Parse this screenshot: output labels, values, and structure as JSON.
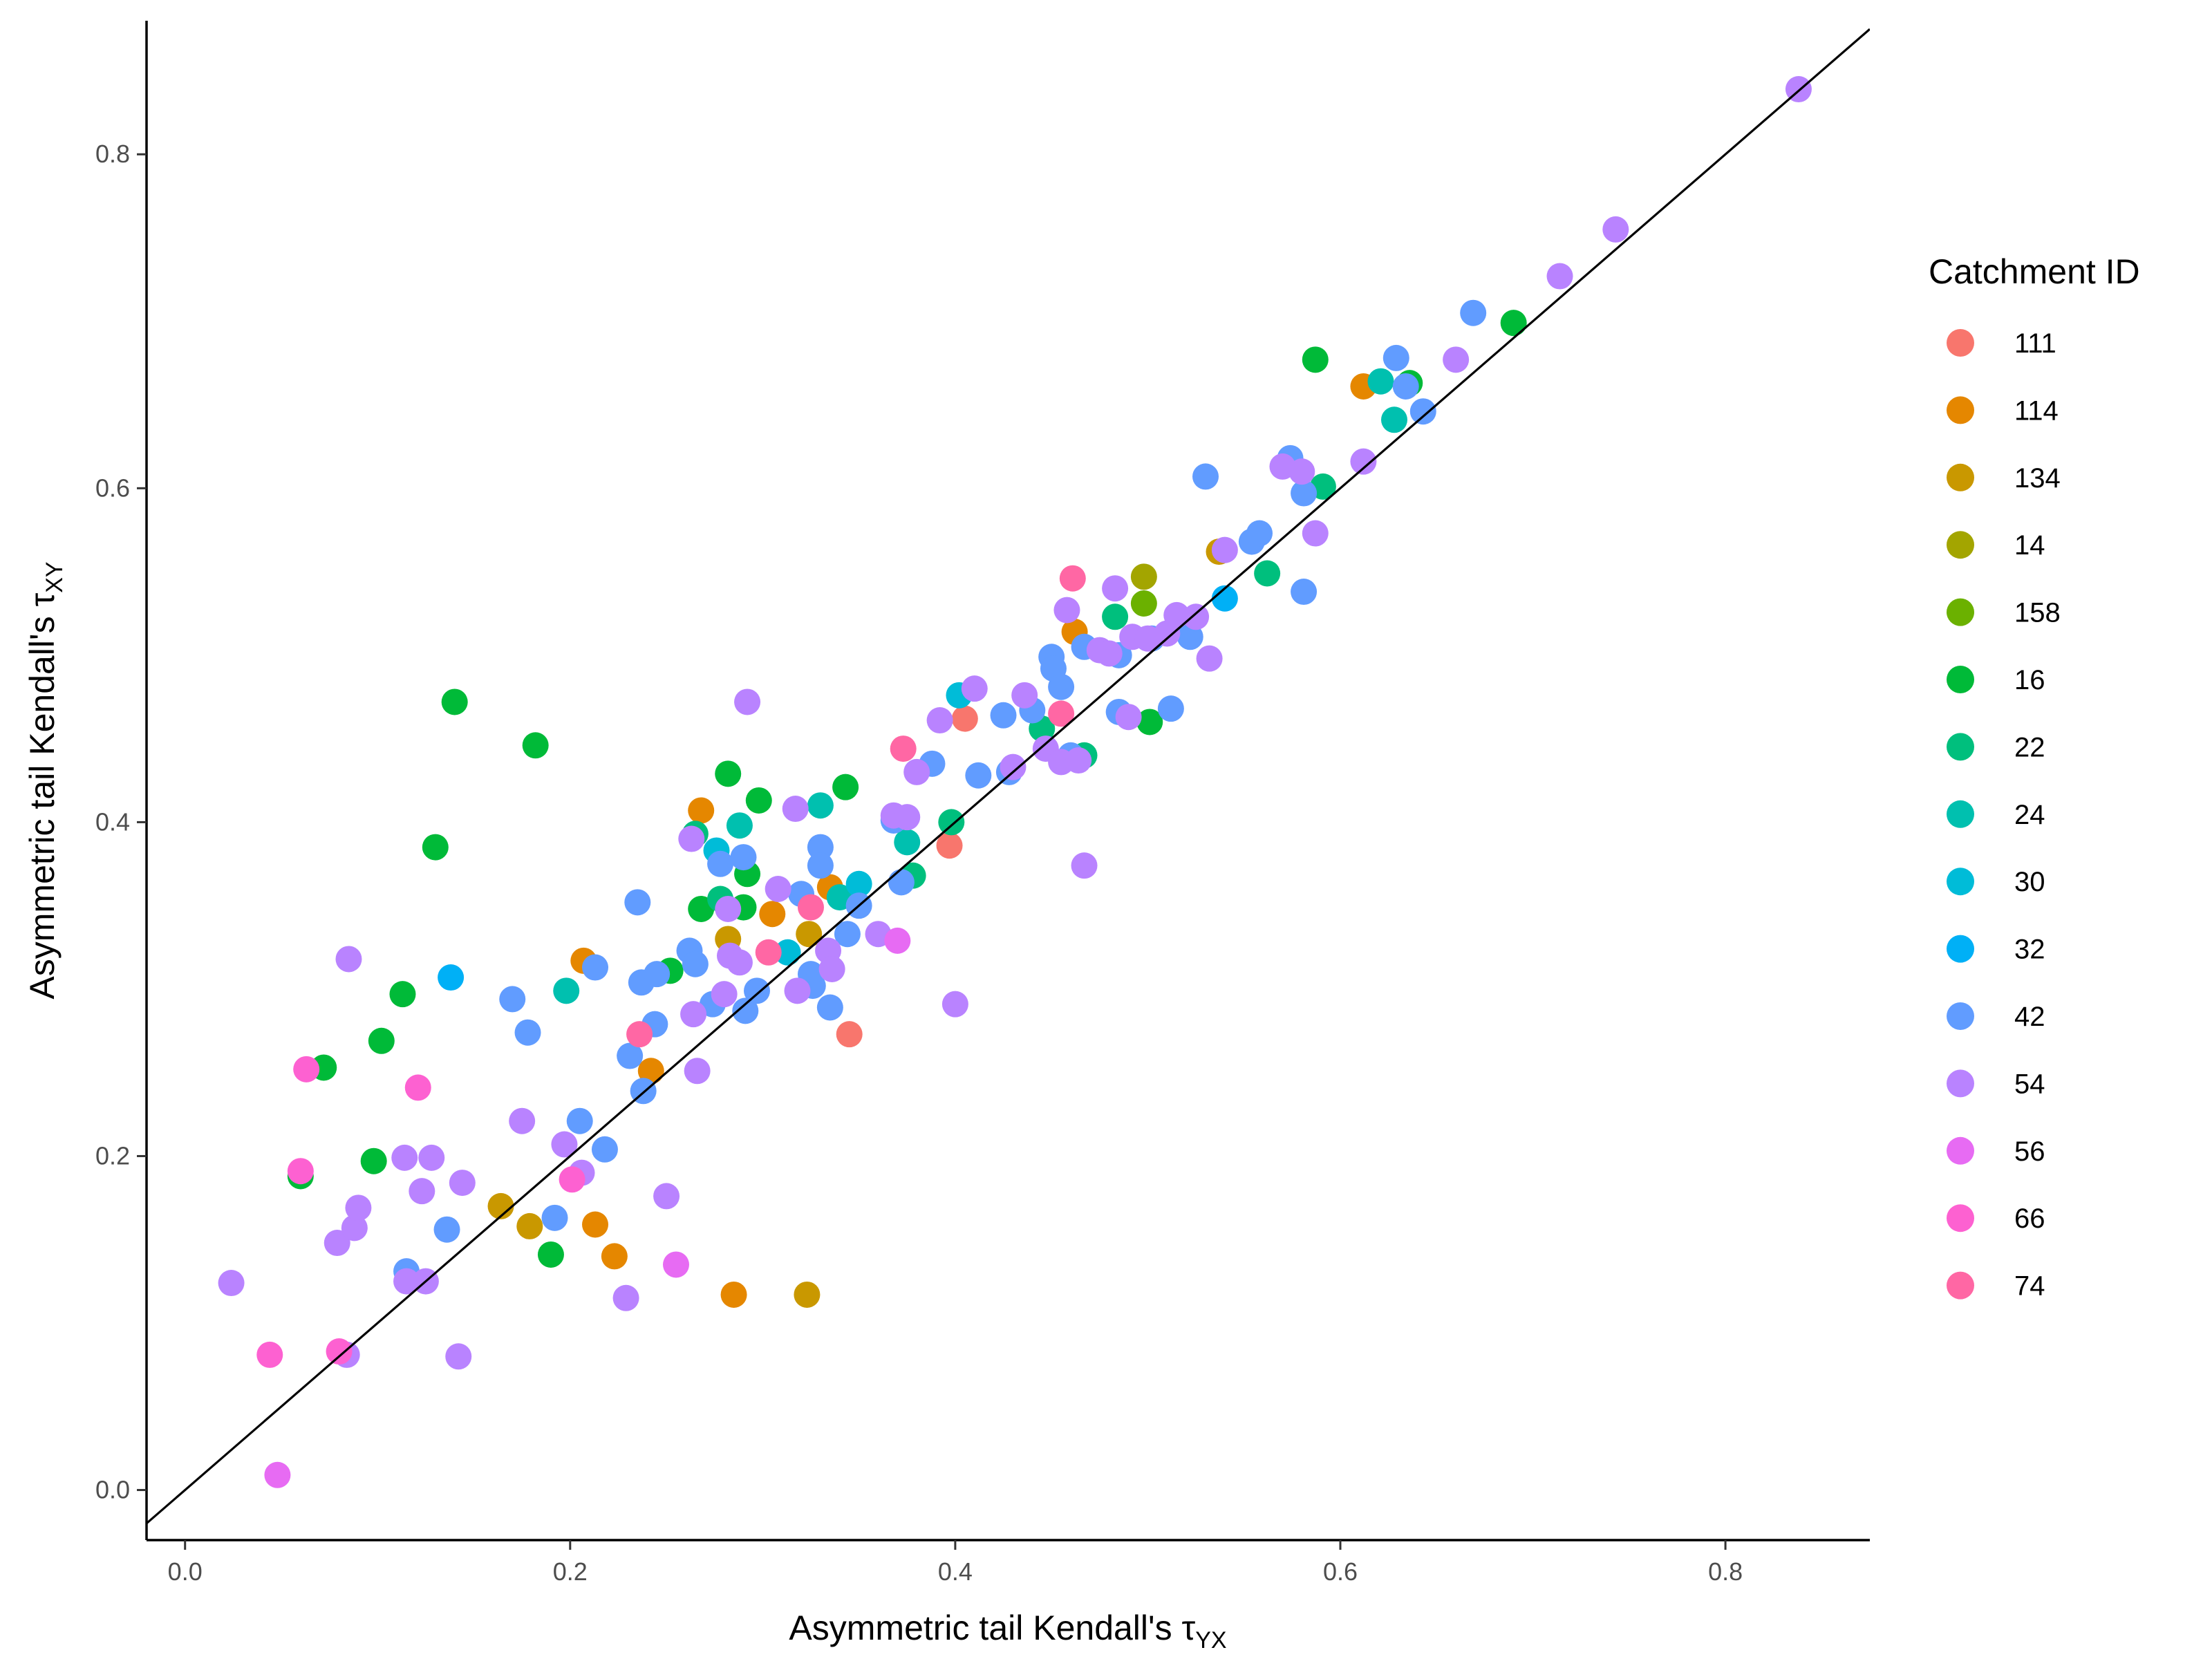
{
  "chart_data": {
    "type": "scatter",
    "xlabel": "Asymmetric tail Kendall's τ",
    "xlabel_sub": "YX",
    "ylabel": "Asymmetric tail Kendall's τ",
    "ylabel_sub": "XY",
    "xlim": [
      -0.02,
      0.875
    ],
    "ylim": [
      -0.03,
      0.88
    ],
    "x_ticks": [
      0.0,
      0.2,
      0.4,
      0.6,
      0.8
    ],
    "y_ticks": [
      0.0,
      0.2,
      0.4,
      0.6,
      0.8
    ],
    "x_tick_labels": [
      "0.0",
      "0.2",
      "0.4",
      "0.6",
      "0.8"
    ],
    "y_tick_labels": [
      "0.0",
      "0.2",
      "0.4",
      "0.6",
      "0.8"
    ],
    "reference_line": "y = x",
    "grid": false,
    "legend_title": "Catchment ID",
    "legend_position": "right",
    "series": [
      {
        "name": "111",
        "color": "#F8766D",
        "points": [
          [
            0.345,
            0.273
          ],
          [
            0.397,
            0.386
          ],
          [
            0.405,
            0.462
          ]
        ]
      },
      {
        "name": "114",
        "color": "#E58700",
        "points": [
          [
            0.207,
            0.317
          ],
          [
            0.213,
            0.159
          ],
          [
            0.223,
            0.14
          ],
          [
            0.242,
            0.251
          ],
          [
            0.268,
            0.407
          ],
          [
            0.285,
            0.117
          ],
          [
            0.305,
            0.345
          ],
          [
            0.335,
            0.361
          ],
          [
            0.462,
            0.514
          ],
          [
            0.612,
            0.661
          ]
        ]
      },
      {
        "name": "134",
        "color": "#C99800",
        "points": [
          [
            0.164,
            0.17
          ],
          [
            0.179,
            0.158
          ],
          [
            0.282,
            0.33
          ],
          [
            0.323,
            0.117
          ],
          [
            0.324,
            0.333
          ],
          [
            0.537,
            0.562
          ]
        ]
      },
      {
        "name": "14",
        "color": "#A3A500",
        "points": [
          [
            0.498,
            0.547
          ]
        ]
      },
      {
        "name": "158",
        "color": "#6BB100",
        "points": [
          [
            0.498,
            0.531
          ]
        ]
      },
      {
        "name": "16",
        "color": "#00BA38",
        "points": [
          [
            0.06,
            0.188
          ],
          [
            0.072,
            0.253
          ],
          [
            0.098,
            0.197
          ],
          [
            0.102,
            0.269
          ],
          [
            0.113,
            0.297
          ],
          [
            0.13,
            0.385
          ],
          [
            0.14,
            0.472
          ],
          [
            0.182,
            0.446
          ],
          [
            0.19,
            0.141
          ],
          [
            0.252,
            0.311
          ],
          [
            0.268,
            0.348
          ],
          [
            0.282,
            0.429
          ],
          [
            0.29,
            0.349
          ],
          [
            0.292,
            0.369
          ],
          [
            0.298,
            0.413
          ],
          [
            0.343,
            0.421
          ],
          [
            0.501,
            0.46
          ],
          [
            0.587,
            0.677
          ],
          [
            0.636,
            0.663
          ],
          [
            0.69,
            0.699
          ]
        ]
      },
      {
        "name": "22",
        "color": "#00BF7D",
        "points": [
          [
            0.265,
            0.393
          ],
          [
            0.278,
            0.354
          ],
          [
            0.378,
            0.368
          ],
          [
            0.398,
            0.4
          ],
          [
            0.445,
            0.456
          ],
          [
            0.467,
            0.44
          ],
          [
            0.483,
            0.523
          ],
          [
            0.562,
            0.549
          ],
          [
            0.591,
            0.601
          ]
        ]
      },
      {
        "name": "24",
        "color": "#00C0AF",
        "points": [
          [
            0.198,
            0.299
          ],
          [
            0.288,
            0.398
          ],
          [
            0.33,
            0.41
          ],
          [
            0.34,
            0.355
          ],
          [
            0.375,
            0.388
          ],
          [
            0.621,
            0.664
          ],
          [
            0.628,
            0.641
          ]
        ]
      },
      {
        "name": "30",
        "color": "#00BCD8",
        "points": [
          [
            0.276,
            0.383
          ],
          [
            0.313,
            0.322
          ],
          [
            0.35,
            0.363
          ],
          [
            0.402,
            0.476
          ]
        ]
      },
      {
        "name": "32",
        "color": "#00B0F6",
        "points": [
          [
            0.138,
            0.307
          ],
          [
            0.54,
            0.534
          ]
        ]
      },
      {
        "name": "42",
        "color": "#619CFF",
        "points": [
          [
            0.115,
            0.131
          ],
          [
            0.136,
            0.156
          ],
          [
            0.17,
            0.294
          ],
          [
            0.178,
            0.274
          ],
          [
            0.192,
            0.163
          ],
          [
            0.205,
            0.221
          ],
          [
            0.213,
            0.313
          ],
          [
            0.218,
            0.204
          ],
          [
            0.231,
            0.26
          ],
          [
            0.235,
            0.352
          ],
          [
            0.237,
            0.304
          ],
          [
            0.238,
            0.239
          ],
          [
            0.244,
            0.279
          ],
          [
            0.245,
            0.309
          ],
          [
            0.262,
            0.323
          ],
          [
            0.265,
            0.315
          ],
          [
            0.274,
            0.291
          ],
          [
            0.278,
            0.375
          ],
          [
            0.29,
            0.379
          ],
          [
            0.291,
            0.287
          ],
          [
            0.297,
            0.299
          ],
          [
            0.32,
            0.357
          ],
          [
            0.325,
            0.309
          ],
          [
            0.326,
            0.302
          ],
          [
            0.33,
            0.385
          ],
          [
            0.33,
            0.374
          ],
          [
            0.335,
            0.289
          ],
          [
            0.344,
            0.333
          ],
          [
            0.35,
            0.35
          ],
          [
            0.368,
            0.401
          ],
          [
            0.372,
            0.364
          ],
          [
            0.388,
            0.435
          ],
          [
            0.412,
            0.428
          ],
          [
            0.425,
            0.464
          ],
          [
            0.428,
            0.43
          ],
          [
            0.44,
            0.467
          ],
          [
            0.45,
            0.499
          ],
          [
            0.451,
            0.492
          ],
          [
            0.455,
            0.481
          ],
          [
            0.46,
            0.44
          ],
          [
            0.467,
            0.505
          ],
          [
            0.485,
            0.5
          ],
          [
            0.485,
            0.466
          ],
          [
            0.502,
            0.51
          ],
          [
            0.512,
            0.468
          ],
          [
            0.522,
            0.511
          ],
          [
            0.53,
            0.607
          ],
          [
            0.554,
            0.568
          ],
          [
            0.558,
            0.573
          ],
          [
            0.574,
            0.618
          ],
          [
            0.581,
            0.538
          ],
          [
            0.581,
            0.597
          ],
          [
            0.629,
            0.678
          ],
          [
            0.634,
            0.661
          ],
          [
            0.643,
            0.646
          ],
          [
            0.669,
            0.705
          ]
        ]
      },
      {
        "name": "54",
        "color": "#B983FF",
        "points": [
          [
            0.024,
            0.124
          ],
          [
            0.079,
            0.148
          ],
          [
            0.084,
            0.081
          ],
          [
            0.085,
            0.318
          ],
          [
            0.088,
            0.157
          ],
          [
            0.09,
            0.169
          ],
          [
            0.114,
            0.199
          ],
          [
            0.115,
            0.125
          ],
          [
            0.123,
            0.179
          ],
          [
            0.125,
            0.125
          ],
          [
            0.128,
            0.199
          ],
          [
            0.142,
            0.08
          ],
          [
            0.144,
            0.184
          ],
          [
            0.175,
            0.221
          ],
          [
            0.197,
            0.207
          ],
          [
            0.206,
            0.19
          ],
          [
            0.229,
            0.115
          ],
          [
            0.25,
            0.176
          ],
          [
            0.263,
            0.39
          ],
          [
            0.264,
            0.285
          ],
          [
            0.266,
            0.251
          ],
          [
            0.28,
            0.297
          ],
          [
            0.282,
            0.348
          ],
          [
            0.283,
            0.32
          ],
          [
            0.288,
            0.316
          ],
          [
            0.292,
            0.472
          ],
          [
            0.308,
            0.36
          ],
          [
            0.317,
            0.408
          ],
          [
            0.318,
            0.299
          ],
          [
            0.334,
            0.323
          ],
          [
            0.336,
            0.312
          ],
          [
            0.36,
            0.333
          ],
          [
            0.368,
            0.404
          ],
          [
            0.375,
            0.403
          ],
          [
            0.38,
            0.43
          ],
          [
            0.392,
            0.461
          ],
          [
            0.4,
            0.291
          ],
          [
            0.41,
            0.48
          ],
          [
            0.43,
            0.433
          ],
          [
            0.436,
            0.476
          ],
          [
            0.447,
            0.444
          ],
          [
            0.455,
            0.436
          ],
          [
            0.458,
            0.527
          ],
          [
            0.464,
            0.437
          ],
          [
            0.467,
            0.374
          ],
          [
            0.475,
            0.503
          ],
          [
            0.48,
            0.501
          ],
          [
            0.483,
            0.54
          ],
          [
            0.49,
            0.463
          ],
          [
            0.492,
            0.511
          ],
          [
            0.5,
            0.51
          ],
          [
            0.51,
            0.513
          ],
          [
            0.515,
            0.524
          ],
          [
            0.525,
            0.523
          ],
          [
            0.532,
            0.498
          ],
          [
            0.54,
            0.563
          ],
          [
            0.57,
            0.613
          ],
          [
            0.58,
            0.61
          ],
          [
            0.587,
            0.573
          ],
          [
            0.612,
            0.616
          ],
          [
            0.66,
            0.677
          ],
          [
            0.714,
            0.727
          ],
          [
            0.743,
            0.755
          ],
          [
            0.838,
            0.839
          ]
        ]
      },
      {
        "name": "56",
        "color": "#E76BF3",
        "points": [
          [
            0.048,
            0.009
          ],
          [
            0.255,
            0.135
          ],
          [
            0.37,
            0.329
          ]
        ]
      },
      {
        "name": "66",
        "color": "#FD61D1",
        "points": [
          [
            0.044,
            0.081
          ],
          [
            0.06,
            0.191
          ],
          [
            0.063,
            0.252
          ],
          [
            0.08,
            0.083
          ],
          [
            0.121,
            0.241
          ],
          [
            0.201,
            0.186
          ]
        ]
      },
      {
        "name": "74",
        "color": "#FF67A4",
        "points": [
          [
            0.236,
            0.273
          ],
          [
            0.303,
            0.322
          ],
          [
            0.325,
            0.349
          ],
          [
            0.373,
            0.444
          ],
          [
            0.455,
            0.465
          ],
          [
            0.461,
            0.546
          ]
        ]
      }
    ]
  }
}
